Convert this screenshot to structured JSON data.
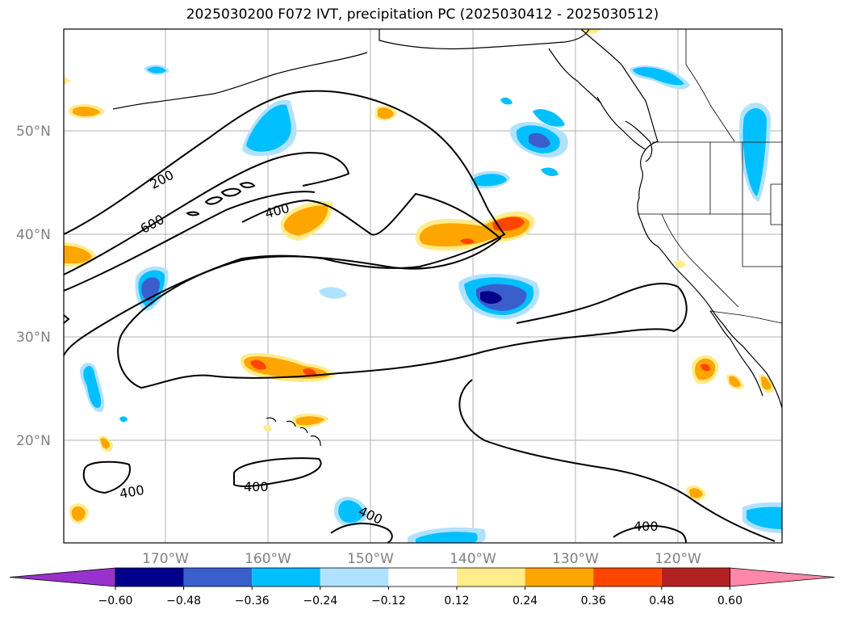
{
  "title": "2025030200 F072 IVT, precipitation PC (2025030412 - 2025030512)",
  "lat_labels": [
    "50°N",
    "40°N",
    "30°N",
    "20°N"
  ],
  "lon_labels": [
    "170°W",
    "160°W",
    "150°W",
    "140°W",
    "130°W",
    "120°W"
  ],
  "contour_labels": [
    "200",
    "600",
    "400",
    "400",
    "400",
    "400",
    "400"
  ],
  "colorbar": {
    "ticks": [
      "−0.60",
      "−0.48",
      "−0.36",
      "−0.24",
      "−0.12",
      "0.12",
      "0.24",
      "0.36",
      "0.48",
      "0.60"
    ],
    "colors": [
      "#9932cc",
      "#00008b",
      "#3a5fcd",
      "#00bfff",
      "#b0e2ff",
      "#ffffff",
      "#ffec8b",
      "#ffa500",
      "#ff4500",
      "#b22222",
      "#ff88aa",
      "#ff88aa"
    ]
  },
  "colors": {
    "frame": "#000000",
    "grid": "#b0b0b0",
    "tick_label": "#808080"
  }
}
